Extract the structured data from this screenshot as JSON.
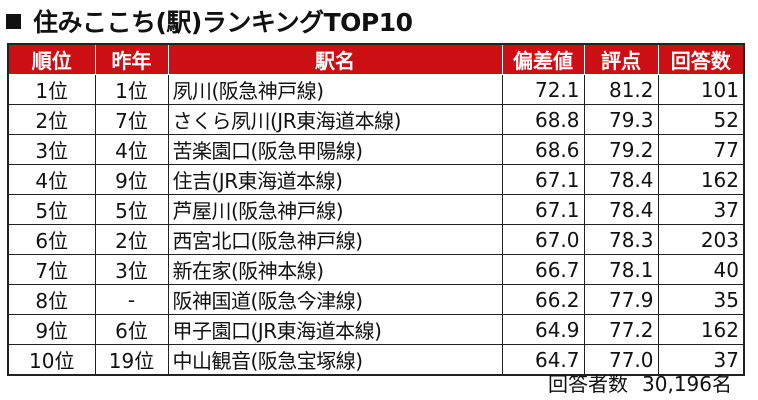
{
  "title": "住みここち(駅)ランキングTOP10",
  "colors": {
    "header_bg": "#cc0f14",
    "header_text": "#ffffff",
    "border": "#222222"
  },
  "table": {
    "headers": [
      "順位",
      "昨年",
      "駅名",
      "偏差値",
      "評点",
      "回答数"
    ],
    "rows": [
      {
        "rank": "1位",
        "prev": "1位",
        "station": "夙川(阪急神戸線)",
        "dev": "72.1",
        "score": "81.2",
        "count": "101"
      },
      {
        "rank": "2位",
        "prev": "7位",
        "station": "さくら夙川(JR東海道本線)",
        "dev": "68.8",
        "score": "79.3",
        "count": "52"
      },
      {
        "rank": "3位",
        "prev": "4位",
        "station": "苦楽園口(阪急甲陽線)",
        "dev": "68.6",
        "score": "79.2",
        "count": "77"
      },
      {
        "rank": "4位",
        "prev": "9位",
        "station": "住吉(JR東海道本線)",
        "dev": "67.1",
        "score": "78.4",
        "count": "162"
      },
      {
        "rank": "5位",
        "prev": "5位",
        "station": "芦屋川(阪急神戸線)",
        "dev": "67.1",
        "score": "78.4",
        "count": "37"
      },
      {
        "rank": "6位",
        "prev": "2位",
        "station": "西宮北口(阪急神戸線)",
        "dev": "67.0",
        "score": "78.3",
        "count": "203"
      },
      {
        "rank": "7位",
        "prev": "3位",
        "station": "新在家(阪神本線)",
        "dev": "66.7",
        "score": "78.1",
        "count": "40"
      },
      {
        "rank": "8位",
        "prev": "-",
        "station": "阪神国道(阪急今津線)",
        "dev": "66.2",
        "score": "77.9",
        "count": "35"
      },
      {
        "rank": "9位",
        "prev": "6位",
        "station": "甲子園口(JR東海道本線)",
        "dev": "64.9",
        "score": "77.2",
        "count": "162"
      },
      {
        "rank": "10位",
        "prev": "19位",
        "station": "中山観音(阪急宝塚線)",
        "dev": "64.7",
        "score": "77.0",
        "count": "37"
      }
    ]
  },
  "footnote": {
    "label": "回答者数",
    "value": "30,196名"
  }
}
